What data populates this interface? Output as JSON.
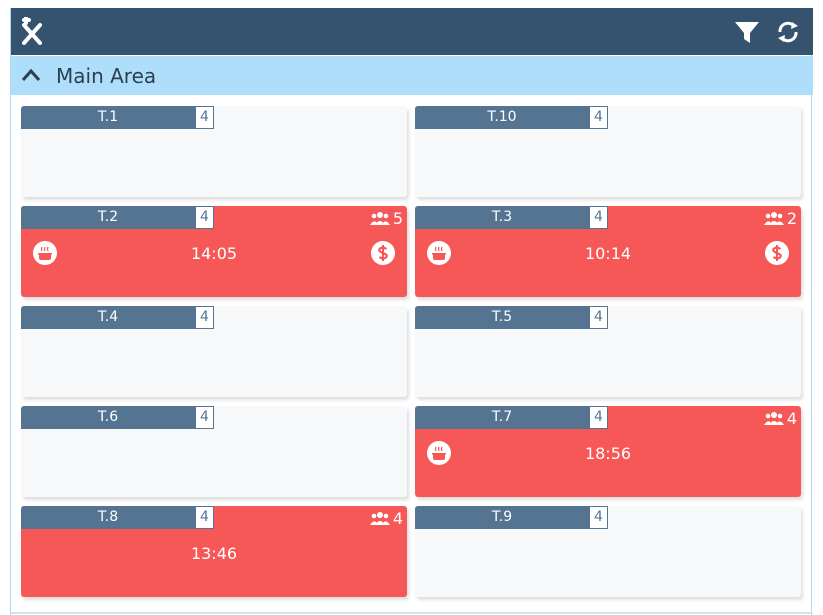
{
  "area": {
    "title": "Main Area"
  },
  "colors": {
    "topbar": "#35536f",
    "area_header": "#afdefb",
    "free": "#f6f8fa",
    "busy": "#f65858",
    "tab": "#557491"
  },
  "tables": [
    {
      "label": "T.1",
      "capacity": "4",
      "status": "free"
    },
    {
      "label": "T.10",
      "capacity": "4",
      "status": "free"
    },
    {
      "label": "T.2",
      "capacity": "4",
      "status": "busy",
      "guests": "5",
      "time": "14:05",
      "icons": [
        "dish-icon",
        "dollar-icon"
      ]
    },
    {
      "label": "T.3",
      "capacity": "4",
      "status": "busy",
      "guests": "2",
      "time": "10:14",
      "icons": [
        "dish-icon",
        "dollar-icon"
      ]
    },
    {
      "label": "T.4",
      "capacity": "4",
      "status": "free"
    },
    {
      "label": "T.5",
      "capacity": "4",
      "status": "free"
    },
    {
      "label": "T.6",
      "capacity": "4",
      "status": "free"
    },
    {
      "label": "T.7",
      "capacity": "4",
      "status": "busy",
      "guests": "4",
      "time": "18:56",
      "icons": [
        "dish-icon"
      ]
    },
    {
      "label": "T.8",
      "capacity": "4",
      "status": "busy",
      "guests": "4",
      "time": "13:46",
      "icons": []
    },
    {
      "label": "T.9",
      "capacity": "4",
      "status": "free"
    }
  ],
  "toolbar": {
    "icons": [
      "logo-icon",
      "filter-icon",
      "refresh-icon"
    ]
  }
}
